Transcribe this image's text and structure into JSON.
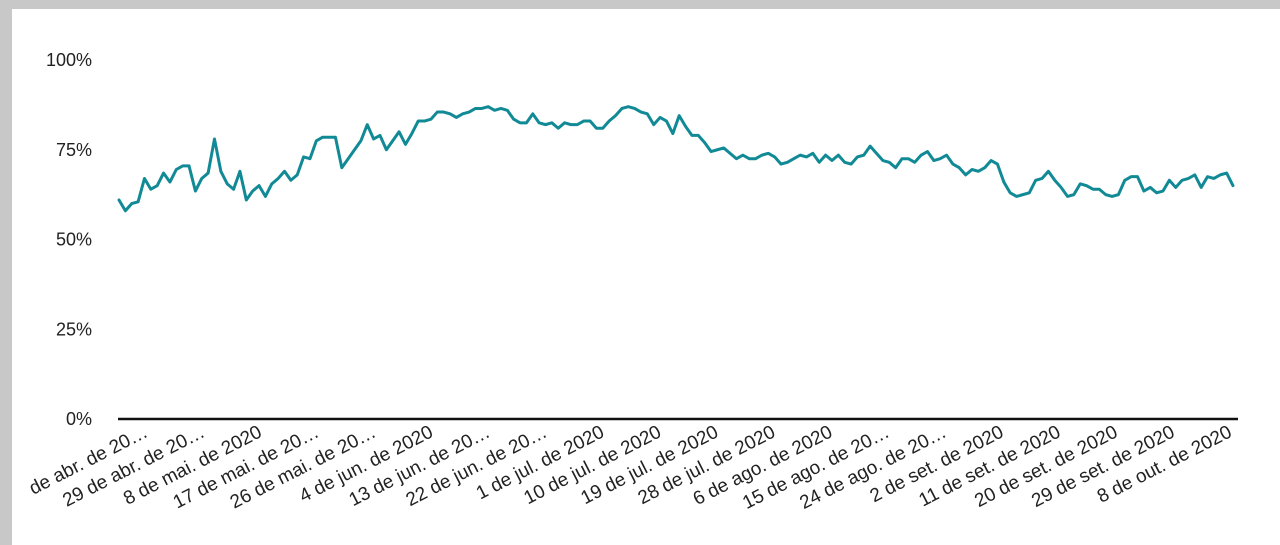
{
  "chart_data": {
    "type": "line",
    "title": "",
    "xlabel": "",
    "ylabel": "",
    "ylim": [
      0,
      100
    ],
    "y_ticks": [
      "0%",
      "25%",
      "50%",
      "75%",
      "100%"
    ],
    "y_tick_values": [
      0,
      25,
      50,
      75,
      100
    ],
    "x_tick_labels": [
      "de abr. de 20…",
      "29 de abr. de 20…",
      "8 de mai. de 2020",
      "17 de mai. de 20…",
      "26 de mai. de 20…",
      "4 de jun. de 2020",
      "13 de jun. de 20…",
      "22 de jun. de 20…",
      "1 de jul. de 2020",
      "10 de jul. de 2020",
      "19 de jul. de 2020",
      "28 de jul. de 2020",
      "6 de ago. de 2020",
      "15 de ago. de 20…",
      "24 de ago. de 20…",
      "2 de set. de 2020",
      "11 de set. de 2020",
      "20 de set. de 2020",
      "29 de set. de 2020",
      "8 de out. de 2020"
    ],
    "grid": false,
    "legend": "none",
    "line_color": "#118a96",
    "series": [
      {
        "values": [
          61,
          58,
          60,
          60.5,
          67,
          64,
          65,
          68.5,
          66,
          69.5,
          70.5,
          70.5,
          63.5,
          67,
          68.5,
          78,
          69,
          65.5,
          64,
          69,
          61,
          63.5,
          65,
          62,
          65.5,
          67,
          69,
          66.5,
          68,
          73,
          72.5,
          77.5,
          78.5,
          78.5,
          78.5,
          70,
          72.5,
          75,
          77.5,
          82,
          78,
          79,
          75,
          77.5,
          80,
          76.5,
          79.5,
          83,
          83,
          83.5,
          85.5,
          85.5,
          85,
          84,
          85,
          85.5,
          86.5,
          86.5,
          87,
          86,
          86.5,
          86,
          83.5,
          82.5,
          82.5,
          85,
          82.5,
          82,
          82.5,
          81,
          82.5,
          82,
          82,
          83,
          83,
          81,
          81,
          83,
          84.5,
          86.5,
          87,
          86.5,
          85.5,
          85,
          82,
          84,
          83,
          79.5,
          84.5,
          81.5,
          79,
          79,
          77,
          74.5,
          75,
          75.5,
          74,
          72.5,
          73.5,
          72.5,
          72.5,
          73.5,
          74,
          73,
          71,
          71.5,
          72.5,
          73.5,
          73,
          74,
          71.5,
          73.5,
          72,
          73.5,
          71.5,
          71,
          73,
          73.5,
          76,
          74,
          72,
          71.5,
          70,
          72.5,
          72.5,
          71.5,
          73.5,
          74.5,
          72,
          72.5,
          73.5,
          71,
          70,
          68,
          69.5,
          69,
          70,
          72,
          71,
          66,
          63,
          62,
          62.5,
          63,
          66.5,
          67,
          69,
          66.5,
          64.5,
          62,
          62.5,
          65.5,
          65,
          64,
          64,
          62.5,
          62,
          62.5,
          66.5,
          67.5,
          67.5,
          63.5,
          64.5,
          63,
          63.5,
          66.5,
          64.5,
          66.5,
          67,
          68,
          64.5,
          67.5,
          67,
          68,
          68.5,
          65
        ]
      }
    ]
  }
}
